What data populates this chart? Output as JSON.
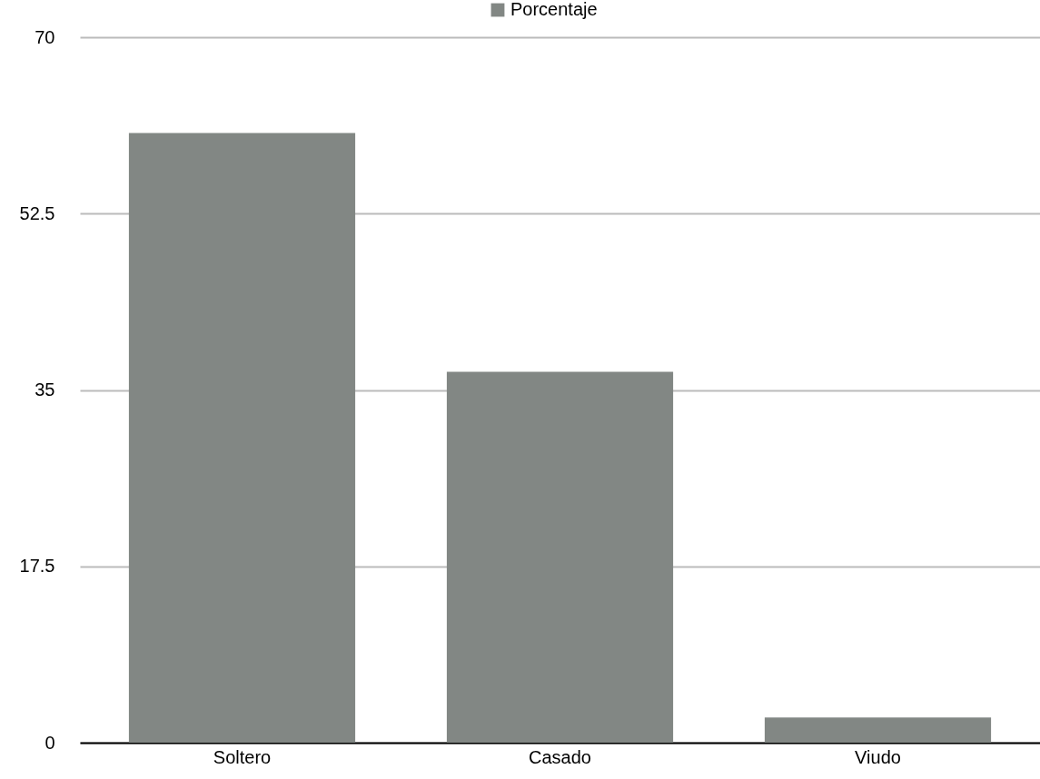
{
  "chart_data": {
    "type": "bar",
    "categories": [
      "Soltero",
      "Casado",
      "Viudo"
    ],
    "series": [
      {
        "name": "Porcentaje",
        "color": "#828784",
        "values": [
          60.5,
          36.8,
          2.5
        ]
      }
    ],
    "ylim": [
      0,
      70
    ],
    "yticks": [
      0,
      17.5,
      35,
      52.5,
      70
    ],
    "grid": "y",
    "legend": "top"
  }
}
